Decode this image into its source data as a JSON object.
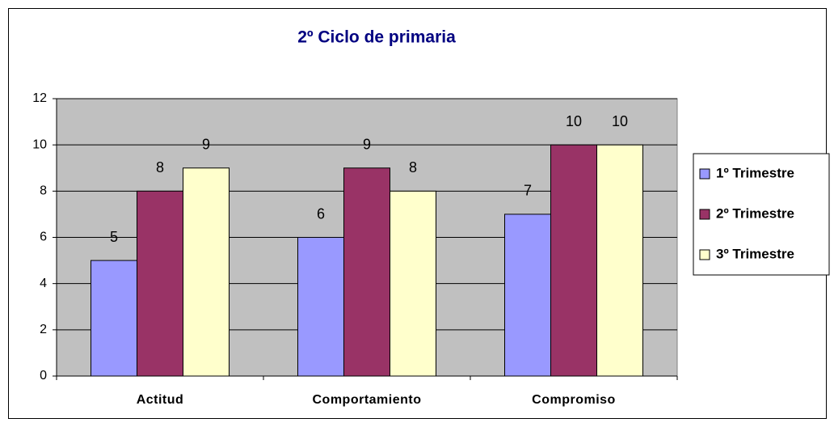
{
  "chart_data": {
    "type": "bar",
    "title": "2º Ciclo de primaria",
    "categories": [
      "Actitud",
      "Comportamiento",
      "Compromiso"
    ],
    "series": [
      {
        "name": "1º Trimestre",
        "color": "#9999ff",
        "values": [
          5,
          6,
          7
        ]
      },
      {
        "name": "2º Trimestre",
        "color": "#993366",
        "values": [
          8,
          9,
          10
        ]
      },
      {
        "name": "3º Trimestre",
        "color": "#ffffcc",
        "values": [
          9,
          8,
          10
        ]
      }
    ],
    "ylim": [
      0,
      12
    ],
    "yticks": [
      0,
      2,
      4,
      6,
      8,
      10,
      12
    ],
    "grid": true,
    "legend": "right",
    "plot_background": "#c0c0c0"
  }
}
